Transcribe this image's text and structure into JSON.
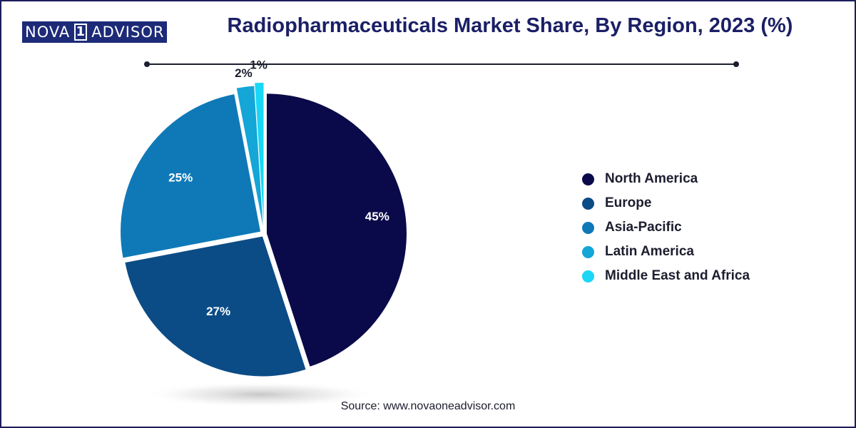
{
  "logo": {
    "left": "NOVA",
    "mark": "1",
    "right": "ADVISOR"
  },
  "source": "Source: www.novaoneadvisor.com",
  "colors": {
    "north_america": "#0a0a4a",
    "europe": "#0c4c86",
    "asia_pacific": "#0f79b7",
    "latin_america": "#13a6d6",
    "middle_east_africa": "#19d7f5"
  },
  "chart_data": {
    "type": "pie",
    "title": "Radiopharmaceuticals Market Share, By Region, 2023 (%)",
    "labels": [
      "North America",
      "Europe",
      "Asia-Pacific",
      "Latin America",
      "Middle East and Africa"
    ],
    "values": [
      45,
      27,
      25,
      2,
      1
    ],
    "value_labels": [
      "45%",
      "27%",
      "25%",
      "2%",
      "1%"
    ],
    "legend_position": "right",
    "exploded": true
  }
}
